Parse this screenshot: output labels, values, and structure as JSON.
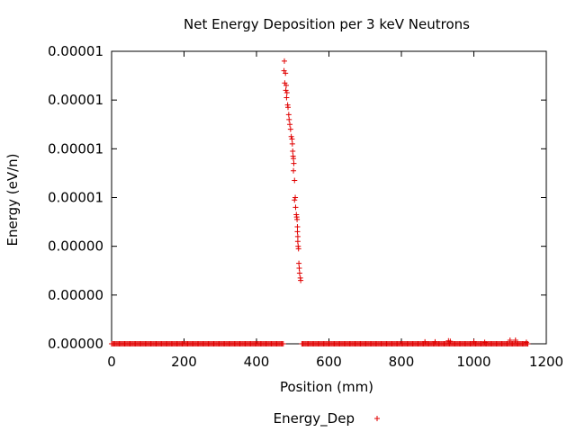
{
  "colors": {
    "series": "#e00000",
    "frame": "#000000",
    "background": "#ffffff"
  },
  "chart_data": {
    "type": "scatter",
    "title": "Net Energy Deposition per 3 keV Neutrons",
    "xlabel": "Position (mm)",
    "ylabel": "Energy (eV/n)",
    "xlim": [
      0,
      1200
    ],
    "ylim": [
      0,
      1.2e-05
    ],
    "xticks": [
      0,
      200,
      400,
      600,
      800,
      1000,
      1200
    ],
    "xtick_labels": [
      "0",
      "200",
      "400",
      "600",
      "800",
      "1000",
      "1200"
    ],
    "yticks": [
      0,
      2e-06,
      4e-06,
      6e-06,
      8e-06,
      1e-05,
      1.2e-05
    ],
    "ytick_labels": [
      "0.00000",
      "0.00000",
      "0.00000",
      "0.00001",
      "0.00001",
      "0.00001",
      "0.00001"
    ],
    "grid": false,
    "legend_position": "bottom",
    "marker": "plus",
    "series": [
      {
        "name": "Energy_Dep",
        "color": "#e00000",
        "points": [
          [
            477,
            1.16e-05
          ],
          [
            476,
            1.12e-05
          ],
          [
            480,
            1.11e-05
          ],
          [
            478,
            1.07e-05
          ],
          [
            482,
            1.06e-05
          ],
          [
            481,
            1.04e-05
          ],
          [
            484,
            1.03e-05
          ],
          [
            483,
            1.01e-05
          ],
          [
            486,
            9.8e-06
          ],
          [
            487,
            9.7e-06
          ],
          [
            489,
            9.4e-06
          ],
          [
            490,
            9.2e-06
          ],
          [
            492,
            9e-06
          ],
          [
            494,
            8.8e-06
          ],
          [
            496,
            8.5e-06
          ],
          [
            498,
            8.4e-06
          ],
          [
            499,
            8.2e-06
          ],
          [
            500,
            7.9e-06
          ],
          [
            501,
            7.7e-06
          ],
          [
            502,
            7.6e-06
          ],
          [
            503,
            7.4e-06
          ],
          [
            502,
            7.1e-06
          ],
          [
            505,
            6.7e-06
          ],
          [
            507,
            6e-06
          ],
          [
            505,
            5.9e-06
          ],
          [
            508,
            5.6e-06
          ],
          [
            510,
            5.3e-06
          ],
          [
            511,
            5.2e-06
          ],
          [
            512,
            5.1e-06
          ],
          [
            513,
            4.8e-06
          ],
          [
            513,
            4.6e-06
          ],
          [
            514,
            4.4e-06
          ],
          [
            514,
            4.2e-06
          ],
          [
            515,
            4e-06
          ],
          [
            516,
            3.9e-06
          ],
          [
            517,
            3.3e-06
          ],
          [
            518,
            3.1e-06
          ],
          [
            519,
            2.9e-06
          ],
          [
            521,
            2.7e-06
          ],
          [
            522,
            2.6e-06
          ],
          [
            865,
            8e-08
          ],
          [
            893,
            8e-08
          ],
          [
            930,
            1.2e-07
          ],
          [
            935,
            1e-07
          ],
          [
            1000,
            8e-08
          ],
          [
            1030,
            6e-08
          ],
          [
            1100,
            1.5e-07
          ],
          [
            1115,
            1.5e-07
          ],
          [
            1145,
            6e-08
          ]
        ],
        "baseline_segments": [
          [
            0,
            475
          ],
          [
            525,
            1150
          ]
        ],
        "baseline_value": 0
      }
    ]
  }
}
